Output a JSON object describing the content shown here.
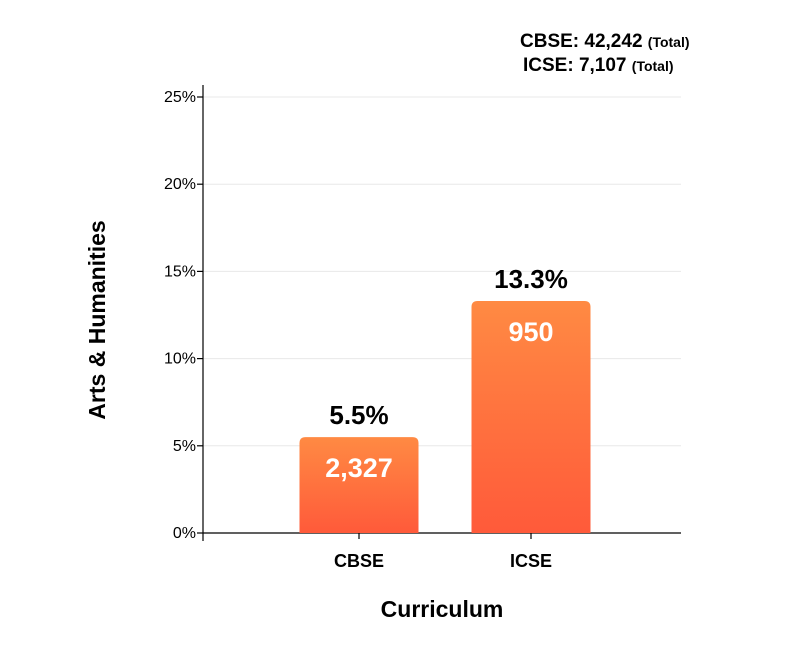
{
  "totals": {
    "cbse_text": "CBSE: 42,242",
    "icse_text": "ICSE: 7,107",
    "note": "(Total)"
  },
  "chart_data": {
    "type": "bar",
    "categories": [
      "CBSE",
      "ICSE"
    ],
    "values": [
      5.5,
      13.3
    ],
    "value_labels": [
      "5.5%",
      "13.3%"
    ],
    "count_labels": [
      "2,327",
      "950"
    ],
    "title": "",
    "xlabel": "Curriculum",
    "ylabel": "Arts & Humanities",
    "ylim": [
      0,
      25
    ],
    "yticks": [
      0,
      5,
      10,
      15,
      20,
      25
    ],
    "ytick_labels": [
      "0%",
      "5%",
      "10%",
      "15%",
      "20%",
      "25%"
    ],
    "grid": true,
    "legend": "none",
    "colors": {
      "bar_top": "#ff8a43",
      "bar_bottom": "#ff5a3a",
      "axis": "#000000",
      "grid": "#e8e8e8",
      "text": "#000000",
      "bar_text": "#ffffff"
    }
  }
}
